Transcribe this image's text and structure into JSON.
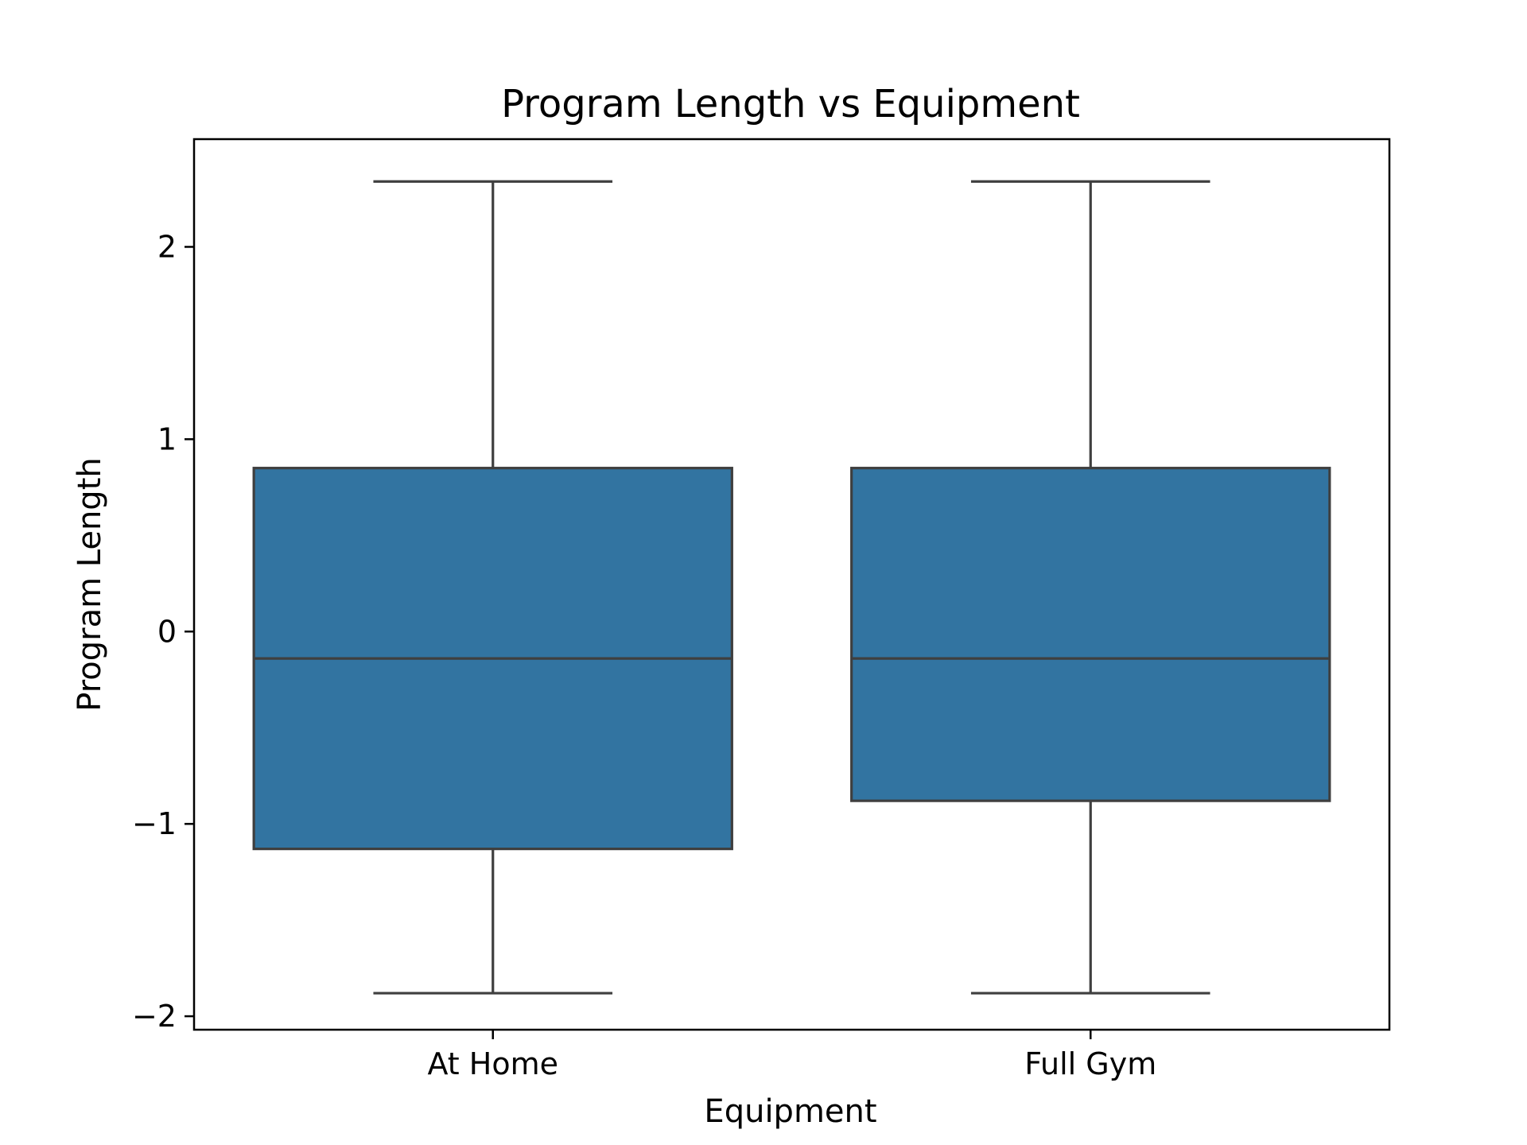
{
  "chart_data": {
    "type": "box",
    "title": "Program Length vs Equipment",
    "xlabel": "Equipment",
    "ylabel": "Program Length",
    "ylim": [
      -2.07,
      2.56
    ],
    "yticks": [
      -2,
      -1,
      0,
      1,
      2
    ],
    "ytick_labels": [
      "−2",
      "−1",
      "0",
      "1",
      "2"
    ],
    "categories": [
      "At Home",
      "Full Gym"
    ],
    "boxes": [
      {
        "category": "At Home",
        "whisker_low": -1.88,
        "q1": -1.13,
        "median": -0.14,
        "q3": 0.85,
        "whisker_high": 2.34
      },
      {
        "category": "Full Gym",
        "whisker_low": -1.88,
        "q1": -0.88,
        "median": -0.14,
        "q3": 0.85,
        "whisker_high": 2.34
      }
    ],
    "box_color": "#3274a1",
    "line_color": "#3f3f3f",
    "grid": false,
    "legend": "none"
  }
}
